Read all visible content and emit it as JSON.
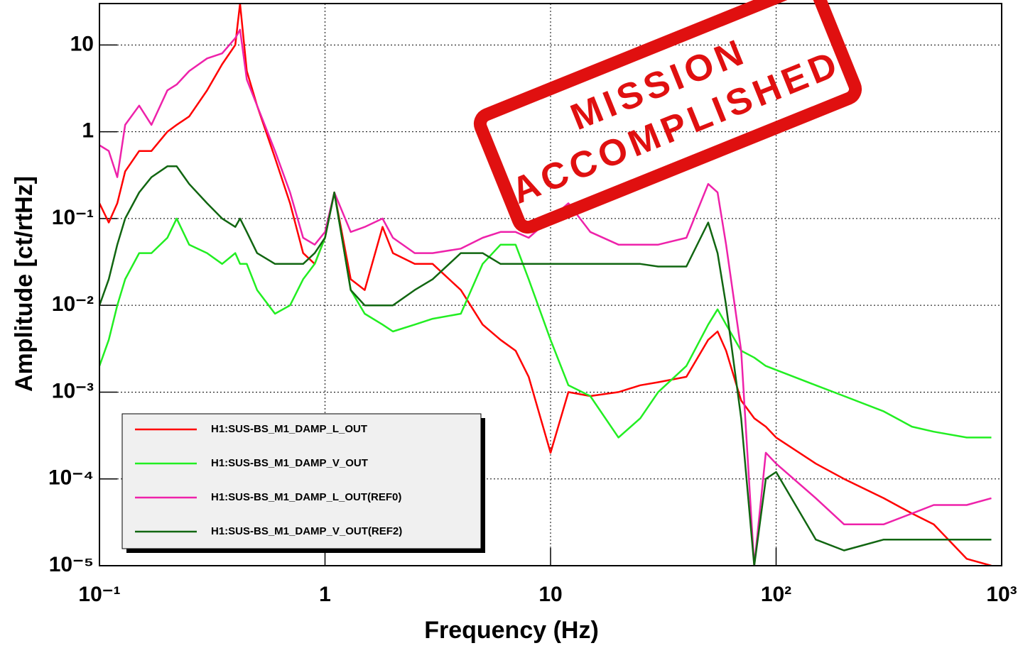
{
  "chart_data": {
    "type": "line",
    "x_label": "Frequency (Hz)",
    "y_label": "Amplitude [ct/rtHz]",
    "annotations": [
      "MISSION",
      "ACCOMPLISHED"
    ],
    "log_x": true,
    "log_y": true,
    "grid": true,
    "legend": "bottom-left",
    "xlim": [
      0.1,
      1000
    ],
    "ylim": [
      1e-05,
      30
    ],
    "xticks": [
      {
        "value": 0.1,
        "label": "10⁻¹"
      },
      1,
      10,
      {
        "value": 100,
        "label": "10²"
      },
      {
        "value": 1000,
        "label": "10³"
      }
    ],
    "yticks": [
      {
        "value": 1e-05,
        "label": "10⁻⁵"
      },
      {
        "value": 0.0001,
        "label": "10⁻⁴"
      },
      {
        "value": 0.001,
        "label": "10⁻³"
      },
      {
        "value": 0.01,
        "label": "10⁻²"
      },
      {
        "value": 0.1,
        "label": "10⁻¹"
      },
      1,
      10
    ],
    "x": [
      0.1,
      0.11,
      0.12,
      0.13,
      0.15,
      0.17,
      0.2,
      0.22,
      0.25,
      0.3,
      0.35,
      0.4,
      0.42,
      0.45,
      0.5,
      0.6,
      0.7,
      0.8,
      0.9,
      1,
      1.1,
      1.3,
      1.5,
      1.8,
      2,
      2.5,
      3,
      4,
      5,
      6,
      7,
      8,
      10,
      12,
      15,
      20,
      25,
      30,
      40,
      50,
      55,
      60,
      70,
      80,
      90,
      100,
      150,
      200,
      300,
      400,
      500,
      700,
      900
    ],
    "series": [
      {
        "name": "H1:SUS-BS_M1_DAMP_L_OUT",
        "color": "#ff0000",
        "values": [
          0.15,
          0.09,
          0.15,
          0.35,
          0.6,
          0.6,
          1.0,
          1.2,
          1.5,
          3,
          6,
          10,
          30,
          5,
          2,
          0.5,
          0.15,
          0.04,
          0.03,
          0.06,
          0.2,
          0.02,
          0.015,
          0.08,
          0.04,
          0.03,
          0.03,
          0.015,
          0.006,
          0.004,
          0.003,
          0.0015,
          0.0002,
          0.001,
          0.0009,
          0.001,
          0.0012,
          0.0013,
          0.0015,
          0.004,
          0.005,
          0.003,
          0.0008,
          0.0005,
          0.0004,
          0.0003,
          0.00015,
          0.0001,
          6e-05,
          4e-05,
          3e-05,
          1.2e-05,
          1e-05
        ]
      },
      {
        "name": "H1:SUS-BS_M1_DAMP_V_OUT",
        "color": "#22ee22",
        "values": [
          0.002,
          0.004,
          0.01,
          0.02,
          0.04,
          0.04,
          0.06,
          0.1,
          0.05,
          0.04,
          0.03,
          0.04,
          0.03,
          0.03,
          0.015,
          0.008,
          0.01,
          0.02,
          0.03,
          0.06,
          0.2,
          0.015,
          0.008,
          0.006,
          0.005,
          0.006,
          0.007,
          0.008,
          0.03,
          0.05,
          0.05,
          0.02,
          0.004,
          0.0012,
          0.0009,
          0.0003,
          0.0005,
          0.001,
          0.002,
          0.006,
          0.009,
          0.006,
          0.003,
          0.0025,
          0.002,
          0.0018,
          0.0012,
          0.0009,
          0.0006,
          0.0004,
          0.00035,
          0.0003,
          0.0003
        ]
      },
      {
        "name": "H1:SUS-BS_M1_DAMP_L_OUT(REF0)",
        "color": "#ee22aa",
        "values": [
          0.7,
          0.6,
          0.3,
          1.2,
          2,
          1.2,
          3,
          3.5,
          5,
          7,
          8,
          12,
          15,
          4,
          2,
          0.6,
          0.2,
          0.06,
          0.05,
          0.07,
          0.2,
          0.07,
          0.08,
          0.1,
          0.06,
          0.04,
          0.04,
          0.045,
          0.06,
          0.07,
          0.07,
          0.06,
          0.1,
          0.15,
          0.07,
          0.05,
          0.05,
          0.05,
          0.06,
          0.25,
          0.2,
          0.05,
          0.003,
          1e-05,
          0.0002,
          0.00015,
          6e-05,
          3e-05,
          3e-05,
          4e-05,
          5e-05,
          5e-05,
          6e-05
        ]
      },
      {
        "name": "H1:SUS-BS_M1_DAMP_V_OUT(REF2)",
        "color": "#116611",
        "values": [
          0.01,
          0.02,
          0.05,
          0.1,
          0.2,
          0.3,
          0.4,
          0.4,
          0.25,
          0.15,
          0.1,
          0.08,
          0.1,
          0.07,
          0.04,
          0.03,
          0.03,
          0.03,
          0.04,
          0.06,
          0.2,
          0.015,
          0.01,
          0.01,
          0.01,
          0.015,
          0.02,
          0.04,
          0.04,
          0.03,
          0.03,
          0.03,
          0.03,
          0.03,
          0.03,
          0.03,
          0.03,
          0.028,
          0.028,
          0.09,
          0.04,
          0.01,
          0.0005,
          1e-05,
          0.0001,
          0.00012,
          2e-05,
          1.5e-05,
          2e-05,
          2e-05,
          2e-05,
          2e-05,
          2e-05
        ]
      }
    ]
  }
}
